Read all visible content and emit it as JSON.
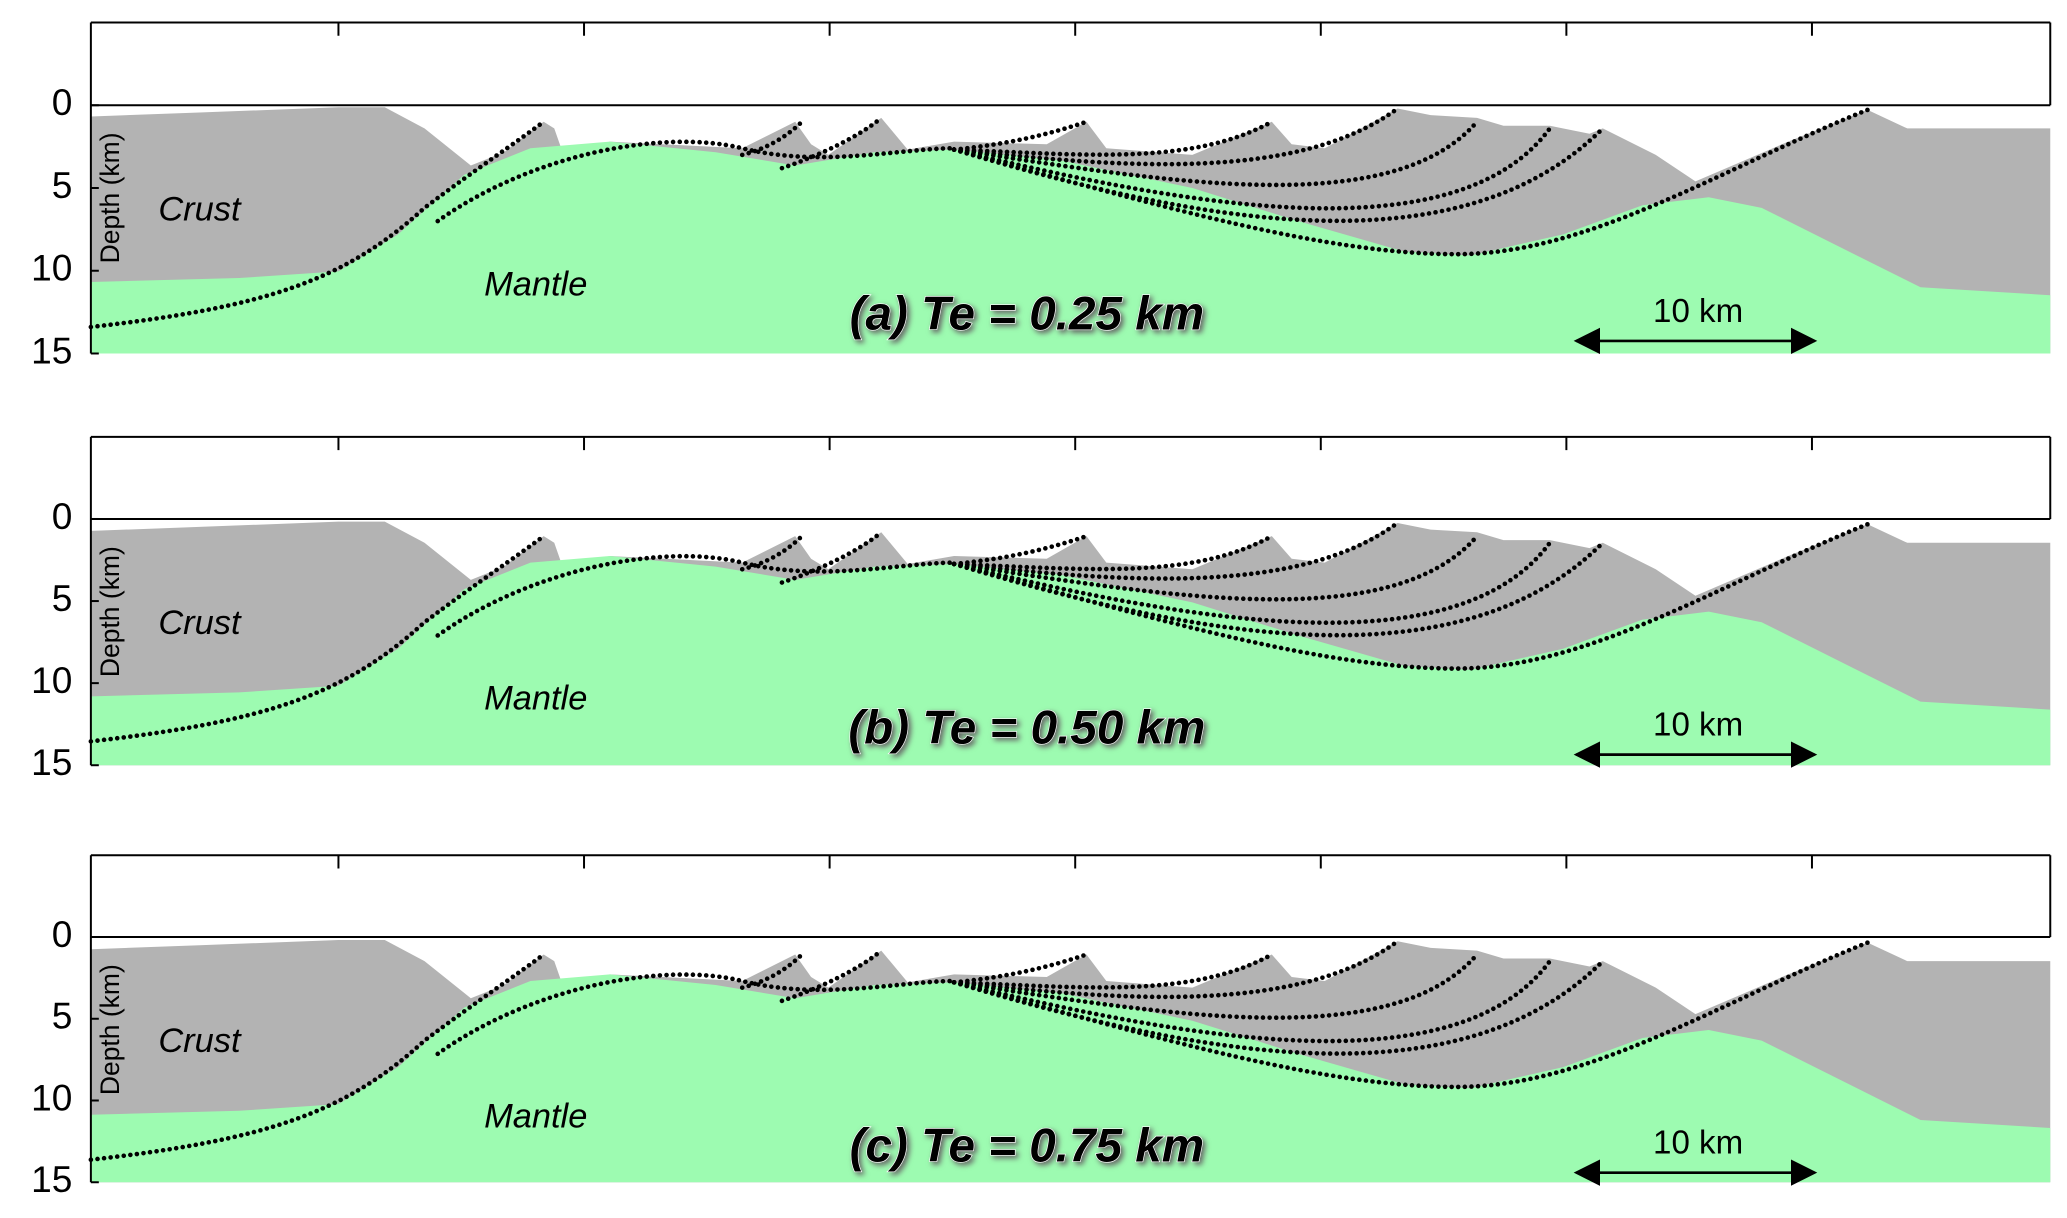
{
  "chart_data": [
    {
      "type": "cross-section",
      "title": "(a) Te = 0.25 km",
      "ylabel": "Depth (km)",
      "ylim": [
        15,
        -5
      ],
      "yticks": [
        0,
        5,
        10,
        15
      ],
      "annotations": [
        "Crust",
        "Mantle",
        "10 km"
      ],
      "colors": {
        "crust": "#b3b3b3",
        "mantle": "#9dfbb1"
      }
    },
    {
      "type": "cross-section",
      "title": "(b) Te = 0.50 km",
      "ylabel": "Depth (km)",
      "ylim": [
        15,
        -5
      ],
      "yticks": [
        0,
        5,
        10,
        15
      ],
      "annotations": [
        "Crust",
        "Mantle",
        "10 km"
      ],
      "colors": {
        "crust": "#b3b3b3",
        "mantle": "#9dfbb1"
      }
    },
    {
      "type": "cross-section",
      "title": "(c) Te = 0.75 km",
      "ylabel": "Depth (km)",
      "ylim": [
        15,
        -5
      ],
      "yticks": [
        0,
        5,
        10,
        15
      ],
      "annotations": [
        "Crust",
        "Mantle",
        "10 km"
      ],
      "colors": {
        "crust": "#b3b3b3",
        "mantle": "#9dfbb1"
      }
    }
  ]
}
